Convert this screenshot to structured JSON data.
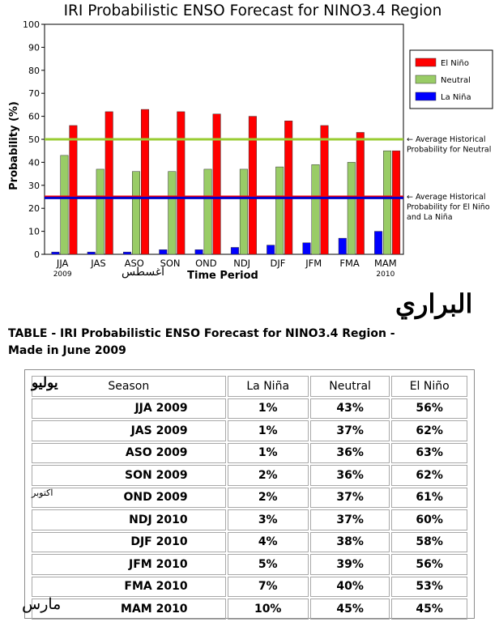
{
  "chart_data": {
    "type": "bar",
    "title": "IRI Probabilistic ENSO Forecast for NINO3.4 Region",
    "xlabel": "Time Period",
    "ylabel": "Probability (%)",
    "ylim": [
      0,
      100
    ],
    "yticks": [
      "0",
      "10",
      "20",
      "30",
      "40",
      "50",
      "60",
      "70",
      "80",
      "90",
      "100"
    ],
    "categories": [
      "JJA",
      "JAS",
      "ASO",
      "SON",
      "OND",
      "NDJ",
      "DJF",
      "JFM",
      "FMA",
      "MAM"
    ],
    "category_sublabels": [
      "2009",
      "",
      "",
      "",
      "",
      "",
      "",
      "",
      "",
      "2010"
    ],
    "series": [
      {
        "name": "La Niña",
        "color": "#0000ff",
        "values": [
          1,
          1,
          1,
          2,
          2,
          3,
          4,
          5,
          7,
          10
        ]
      },
      {
        "name": "Neutral",
        "color": "#99cc66",
        "values": [
          43,
          37,
          36,
          36,
          37,
          37,
          38,
          39,
          40,
          45
        ]
      },
      {
        "name": "El Niño",
        "color": "#ff0000",
        "values": [
          56,
          62,
          63,
          62,
          61,
          60,
          58,
          56,
          53,
          45
        ]
      }
    ],
    "reference_lines": [
      {
        "value": 50,
        "color": "#99cc33",
        "label_lines": [
          "← Average Historical",
          "Probability for Neutral"
        ]
      },
      {
        "value": 25,
        "color": "#ff0000",
        "label_lines": [
          "← Average Historical",
          "Probability for El Niño",
          "and La Niña"
        ]
      },
      {
        "value": 24.5,
        "color": "#0000cc",
        "label_lines": []
      }
    ],
    "legend_position": "top-right",
    "grid": false
  },
  "annotations": {
    "aug": "اغسطس",
    "signature": "البراري",
    "july": "يوليو",
    "october": "اكتوبر",
    "march": "مارس"
  },
  "table": {
    "title": "TABLE - IRI Probabilistic ENSO Forecast for NINO3.4 Region - Made in June 2009",
    "headers": [
      "Season",
      "La Niña",
      "Neutral",
      "El Niño"
    ],
    "rows": [
      [
        "JJA 2009",
        "1%",
        "43%",
        "56%"
      ],
      [
        "JAS 2009",
        "1%",
        "37%",
        "62%"
      ],
      [
        "ASO 2009",
        "1%",
        "36%",
        "63%"
      ],
      [
        "SON 2009",
        "2%",
        "36%",
        "62%"
      ],
      [
        "OND 2009",
        "2%",
        "37%",
        "61%"
      ],
      [
        "NDJ 2010",
        "3%",
        "37%",
        "60%"
      ],
      [
        "DJF 2010",
        "4%",
        "38%",
        "58%"
      ],
      [
        "JFM 2010",
        "5%",
        "39%",
        "56%"
      ],
      [
        "FMA 2010",
        "7%",
        "40%",
        "53%"
      ],
      [
        "MAM 2010",
        "10%",
        "45%",
        "45%"
      ]
    ]
  }
}
